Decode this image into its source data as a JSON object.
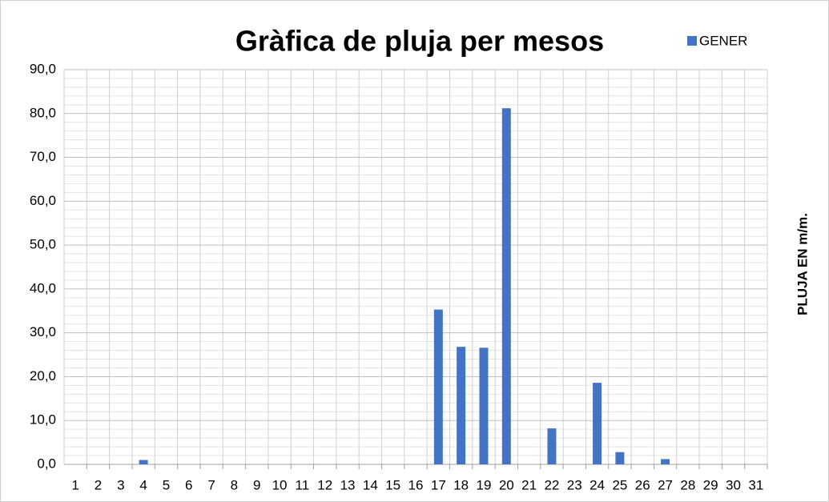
{
  "chart_data": {
    "type": "bar",
    "title": "Gràfica de pluja per mesos",
    "y_label": "PLUJA EN m/m.",
    "categories": [
      "1",
      "2",
      "3",
      "4",
      "5",
      "6",
      "7",
      "8",
      "9",
      "10",
      "11",
      "12",
      "13",
      "14",
      "15",
      "16",
      "17",
      "18",
      "19",
      "20",
      "21",
      "22",
      "23",
      "24",
      "25",
      "26",
      "27",
      "28",
      "29",
      "30",
      "31"
    ],
    "series": [
      {
        "name": "GENER",
        "color": "#4472c4",
        "values": [
          0,
          0,
          0,
          1.0,
          0,
          0,
          0,
          0,
          0,
          0,
          0,
          0,
          0,
          0,
          0,
          0,
          35.3,
          26.8,
          26.6,
          81.2,
          0,
          8.2,
          0,
          18.6,
          2.8,
          0,
          1.2,
          0,
          0,
          0,
          0
        ]
      }
    ],
    "ylim": [
      0,
      90
    ],
    "yticks": [
      {
        "value": 0,
        "label": "0,0"
      },
      {
        "value": 10,
        "label": "10,0"
      },
      {
        "value": 20,
        "label": "20,0"
      },
      {
        "value": 30,
        "label": "30,0"
      },
      {
        "value": 40,
        "label": "40,0"
      },
      {
        "value": 50,
        "label": "50,0"
      },
      {
        "value": 60,
        "label": "60,0"
      },
      {
        "value": 70,
        "label": "70,0"
      },
      {
        "value": 80,
        "label": "80,0"
      },
      {
        "value": 90,
        "label": "90,0"
      }
    ],
    "y_minor_ticks": [
      2,
      4,
      6,
      8,
      12,
      14,
      16,
      18,
      22,
      24,
      26,
      28,
      32,
      34,
      36,
      38,
      42,
      44,
      46,
      48,
      52,
      54,
      56,
      58,
      62,
      64,
      66,
      68,
      72,
      74,
      76,
      78,
      82,
      84,
      86,
      88
    ],
    "grid": true,
    "legend": "top-right"
  }
}
